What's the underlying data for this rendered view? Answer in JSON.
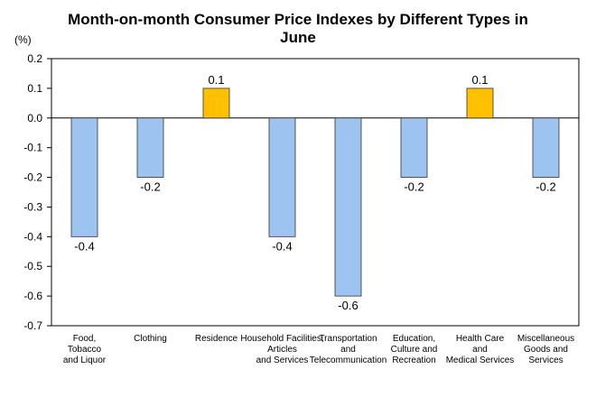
{
  "chart_data": {
    "type": "bar",
    "title_lines": [
      "Month-on-month Consumer Price Indexes by Different Types in",
      "June"
    ],
    "ylabel": "(%)",
    "xlabel": "",
    "ylim": [
      -0.7,
      0.2
    ],
    "yticks": [
      "0.2",
      "0.1",
      "0.0",
      "-0.1",
      "-0.2",
      "-0.3",
      "-0.4",
      "-0.5",
      "-0.6",
      "-0.7"
    ],
    "ytick_values": [
      0.2,
      0.1,
      0.0,
      -0.1,
      -0.2,
      -0.3,
      -0.4,
      -0.5,
      -0.6,
      -0.7
    ],
    "grid": false,
    "legend": "none",
    "categories": [
      [
        "Food,",
        "Tobacco",
        "and Liquor"
      ],
      [
        "Clothing"
      ],
      [
        "Residence"
      ],
      [
        "Household Facilities,",
        "Articles",
        "and Services"
      ],
      [
        "Transportation",
        "and",
        "Telecommunication"
      ],
      [
        "Education,",
        "Culture and",
        "Recreation"
      ],
      [
        "Health Care",
        "and",
        "Medical Services"
      ],
      [
        "Miscellaneous",
        "Goods and",
        "Services"
      ]
    ],
    "values": [
      -0.4,
      -0.2,
      0.1,
      -0.4,
      -0.6,
      -0.2,
      0.1,
      -0.2
    ],
    "value_labels": [
      "-0.4",
      "-0.2",
      "0.1",
      "-0.4",
      "-0.6",
      "-0.2",
      "0.1",
      "-0.2"
    ],
    "colors": {
      "negative_fill": "#9dc3f0",
      "positive_fill": "#ffc000",
      "bar_stroke": "#333333",
      "axis": "#000000",
      "background": "#ffffff"
    }
  }
}
